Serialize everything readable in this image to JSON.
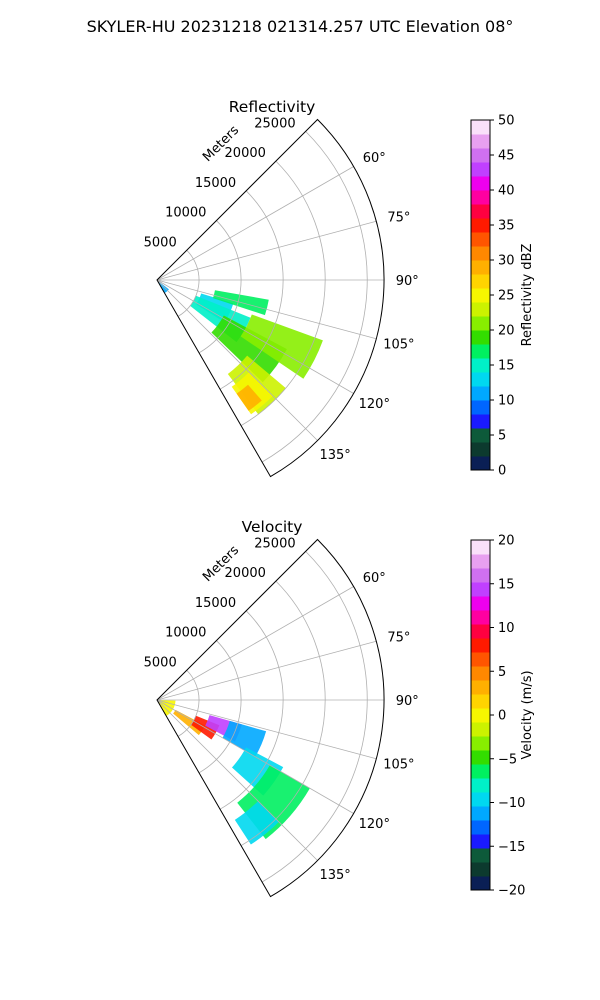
{
  "suptitle": "SKYLER-HU  20231218  021314.257 UTC Elevation 08°",
  "chart_data": [
    {
      "type": "heatmap",
      "subtype": "polar-ppi-sector",
      "title": "Reflectivity",
      "range_label": "Meters",
      "range_ticks": [
        "5000",
        "10000",
        "15000",
        "20000",
        "25000"
      ],
      "range_tick_values": [
        5000,
        10000,
        15000,
        20000,
        25000
      ],
      "rlim": [
        0,
        27000
      ],
      "azimuth_range_deg": [
        45,
        150
      ],
      "azimuth_ticks": [
        "60°",
        "75°",
        "90°",
        "105°",
        "120°",
        "135°"
      ],
      "azimuth_tick_values": [
        60,
        75,
        90,
        105,
        120,
        135
      ],
      "grid": true,
      "colorbar": {
        "label": "Reflectivity dBZ",
        "min": 0,
        "max": 50,
        "ticks": [
          "0",
          "5",
          "10",
          "15",
          "20",
          "25",
          "30",
          "35",
          "40",
          "45",
          "50"
        ],
        "tick_values": [
          0,
          5,
          10,
          15,
          20,
          25,
          30,
          35,
          40,
          45,
          50
        ],
        "colors": [
          "#0a1f55",
          "#0c3a2e",
          "#0d5a3a",
          "#1a1aff",
          "#0066ff",
          "#00a8ff",
          "#00d8f0",
          "#00f0c8",
          "#00f060",
          "#33dd00",
          "#88ee00",
          "#ccf200",
          "#f6f600",
          "#ffd400",
          "#ffb000",
          "#ff8800",
          "#ff5500",
          "#ff1a00",
          "#ff0040",
          "#ff00a0",
          "#ee00ee",
          "#c040ff",
          "#d070f0",
          "#e8a0f0",
          "#fae0fa"
        ]
      },
      "echo_regions": [
        {
          "value": 10,
          "az": [
            128,
            150
          ],
          "r": [
            0,
            1800
          ]
        },
        {
          "value": 12,
          "az": [
            107,
            122
          ],
          "r": [
            5500,
            9500
          ]
        },
        {
          "value": 14,
          "az": [
            112,
            128
          ],
          "r": [
            5000,
            12000
          ]
        },
        {
          "value": 16,
          "az": [
            100,
            108
          ],
          "r": [
            7000,
            13500
          ]
        },
        {
          "value": 18,
          "az": [
            118,
            134
          ],
          "r": [
            9000,
            17500
          ]
        },
        {
          "value": 20,
          "az": [
            110,
            124
          ],
          "r": [
            12000,
            21000
          ]
        },
        {
          "value": 22,
          "az": [
            130,
            143
          ],
          "r": [
            14000,
            20000
          ]
        },
        {
          "value": 25,
          "az": [
            135,
            145
          ],
          "r": [
            15500,
            19500
          ]
        },
        {
          "value": 28,
          "az": [
            139,
            145
          ],
          "r": [
            16500,
            19000
          ]
        }
      ]
    },
    {
      "type": "heatmap",
      "subtype": "polar-ppi-sector",
      "title": "Velocity",
      "range_label": "Meters",
      "range_ticks": [
        "5000",
        "10000",
        "15000",
        "20000",
        "25000"
      ],
      "range_tick_values": [
        5000,
        10000,
        15000,
        20000,
        25000
      ],
      "rlim": [
        0,
        27000
      ],
      "azimuth_range_deg": [
        45,
        150
      ],
      "azimuth_ticks": [
        "60°",
        "75°",
        "90°",
        "105°",
        "120°",
        "135°"
      ],
      "azimuth_tick_values": [
        60,
        75,
        90,
        105,
        120,
        135
      ],
      "grid": true,
      "colorbar": {
        "label": "Velocity (m/s)",
        "min": -20,
        "max": 20,
        "ticks": [
          "−20",
          "−15",
          "−10",
          "−5",
          "0",
          "5",
          "10",
          "15",
          "20"
        ],
        "tick_values": [
          -20,
          -15,
          -10,
          -5,
          0,
          5,
          10,
          15,
          20
        ],
        "colors": [
          "#0a1f55",
          "#0c3a2e",
          "#0d5a3a",
          "#1a1aff",
          "#0066ff",
          "#00a8ff",
          "#00d8f0",
          "#00f0c8",
          "#00f060",
          "#33dd00",
          "#88ee00",
          "#ccf200",
          "#f6f600",
          "#ffd400",
          "#ffb000",
          "#ff8800",
          "#ff5500",
          "#ff1a00",
          "#ff0040",
          "#ff00a0",
          "#ee00ee",
          "#c040ff",
          "#d070f0",
          "#e8a0f0",
          "#fae0fa"
        ]
      },
      "echo_regions": [
        {
          "value": 0,
          "az": [
            92,
            150
          ],
          "r": [
            0,
            2200
          ]
        },
        {
          "value": 3,
          "az": [
            118,
            130
          ],
          "r": [
            2500,
            6500
          ]
        },
        {
          "value": 8,
          "az": [
            112,
            126
          ],
          "r": [
            5000,
            8000
          ]
        },
        {
          "value": 14,
          "az": [
            106,
            118
          ],
          "r": [
            6500,
            10500
          ]
        },
        {
          "value": -12,
          "az": [
            106,
            120
          ],
          "r": [
            9000,
            13500
          ]
        },
        {
          "value": -10,
          "az": [
            118,
            132
          ],
          "r": [
            12000,
            17000
          ]
        },
        {
          "value": -7,
          "az": [
            120,
            142
          ],
          "r": [
            15500,
            21000
          ]
        },
        {
          "value": -9,
          "az": [
            135,
            147
          ],
          "r": [
            17000,
            20500
          ]
        }
      ]
    }
  ]
}
